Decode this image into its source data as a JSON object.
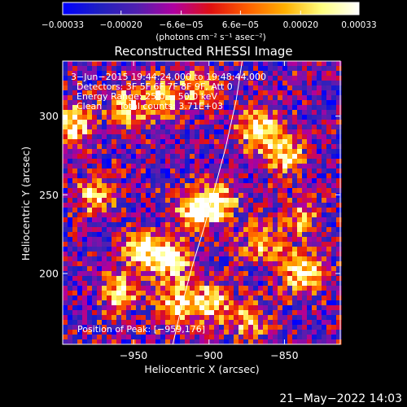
{
  "chart_data": {
    "type": "heatmap",
    "title": "Reconstructed RHESSI Image",
    "xlabel": "Heliocentric X (arcsec)",
    "ylabel": "Heliocentric Y (arcsec)",
    "xlim": [
      -997,
      -813
    ],
    "ylim": [
      155,
      335
    ],
    "x_ticks": [
      -950,
      -900,
      -850
    ],
    "x_tick_labels": [
      "−950",
      "−900",
      "−850"
    ],
    "y_ticks": [
      200,
      250,
      300
    ],
    "y_tick_labels": [
      "200",
      "250",
      "300"
    ],
    "colorbar": {
      "range": [
        -0.00033,
        0.00033
      ],
      "ticks": [
        -0.00033,
        -0.0002,
        -6.6e-05,
        6.6e-05,
        0.0002,
        0.00033
      ],
      "tick_labels": [
        "−0.00033",
        "−0.00020",
        "−6.6e−05",
        "6.6e−05",
        "0.00020",
        "0.00033"
      ],
      "units": "(photons cm⁻² s⁻¹ asec⁻²)"
    },
    "annotations": [
      "3−Jun−2015 19:44:24.000 to 19:48:44.000",
      "Detectors: 3F 5F 6F 7F 8F 9F, Att 0",
      "Energy Range: 25.0 − 50.0 keV",
      "Clean      Total counts: 3.71E+03",
      "Position of Peak: [−959,176]"
    ],
    "limb_curve": {
      "x": [
        -924,
        -918,
        -911,
        -903,
        -896,
        -889,
        -882,
        -878
      ],
      "y": [
        155,
        180,
        205,
        230,
        255,
        280,
        310,
        335
      ]
    },
    "grid": false,
    "colormap": [
      "#0000ff",
      "#2020c0",
      "#5020b0",
      "#b000a0",
      "#e01010",
      "#ff6000",
      "#ffb000",
      "#ffff80",
      "#ffffff"
    ],
    "bright_regions": [
      {
        "x": -990,
        "y": 295,
        "intensity": 0.95
      },
      {
        "x": -975,
        "y": 250,
        "intensity": 0.7
      },
      {
        "x": -955,
        "y": 305,
        "intensity": 0.75
      },
      {
        "x": -930,
        "y": 310,
        "intensity": 0.8
      },
      {
        "x": -943,
        "y": 215,
        "intensity": 0.95
      },
      {
        "x": -926,
        "y": 208,
        "intensity": 1.0
      },
      {
        "x": -910,
        "y": 240,
        "intensity": 0.9
      },
      {
        "x": -895,
        "y": 245,
        "intensity": 0.85
      },
      {
        "x": -960,
        "y": 188,
        "intensity": 0.8
      },
      {
        "x": -922,
        "y": 180,
        "intensity": 0.85
      },
      {
        "x": -900,
        "y": 182,
        "intensity": 0.8
      },
      {
        "x": -868,
        "y": 292,
        "intensity": 1.0
      },
      {
        "x": -850,
        "y": 275,
        "intensity": 0.9
      },
      {
        "x": -840,
        "y": 235,
        "intensity": 0.6
      },
      {
        "x": -838,
        "y": 200,
        "intensity": 1.0
      },
      {
        "x": -865,
        "y": 218,
        "intensity": 0.7
      },
      {
        "x": -875,
        "y": 170,
        "intensity": 0.65
      },
      {
        "x": -905,
        "y": 318,
        "intensity": 0.55
      }
    ],
    "noise_level": 0.55
  },
  "footer": {
    "timestamp": "21−May−2022 14:03"
  }
}
